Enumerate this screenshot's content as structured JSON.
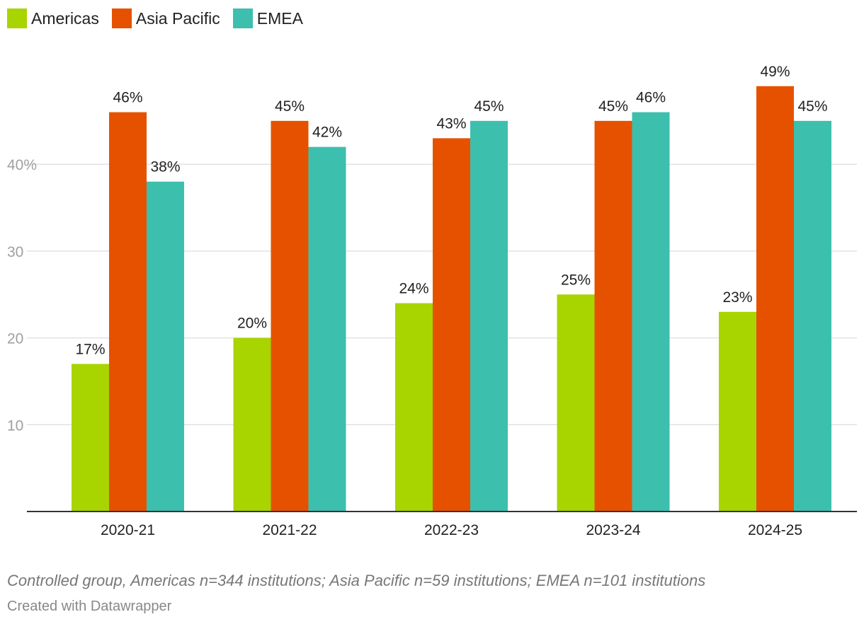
{
  "legend": [
    {
      "label": "Americas",
      "color": "#a8d400"
    },
    {
      "label": "Asia Pacific",
      "color": "#e65100"
    },
    {
      "label": "EMEA",
      "color": "#3dbfae"
    }
  ],
  "chart_data": {
    "type": "bar",
    "categories": [
      "2020-21",
      "2021-22",
      "2022-23",
      "2023-24",
      "2024-25"
    ],
    "series": [
      {
        "name": "Americas",
        "values": [
          17,
          20,
          24,
          25,
          23
        ],
        "color": "#a8d400"
      },
      {
        "name": "Asia Pacific",
        "values": [
          46,
          45,
          43,
          45,
          49
        ],
        "color": "#e65100"
      },
      {
        "name": "EMEA",
        "values": [
          38,
          42,
          45,
          46,
          45
        ],
        "color": "#3dbfae"
      }
    ],
    "ylim": [
      0,
      50
    ],
    "yticks": [
      10,
      20,
      30,
      40
    ],
    "ytick_labels": [
      "10",
      "20",
      "30",
      "40%"
    ],
    "data_label_suffix": "%",
    "grid": true,
    "legend_position": "top-left"
  },
  "footnote": "Controlled group, Americas n=344 institutions; Asia Pacific n=59 institutions; EMEA n=101 institutions",
  "credit": "Created with Datawrapper"
}
